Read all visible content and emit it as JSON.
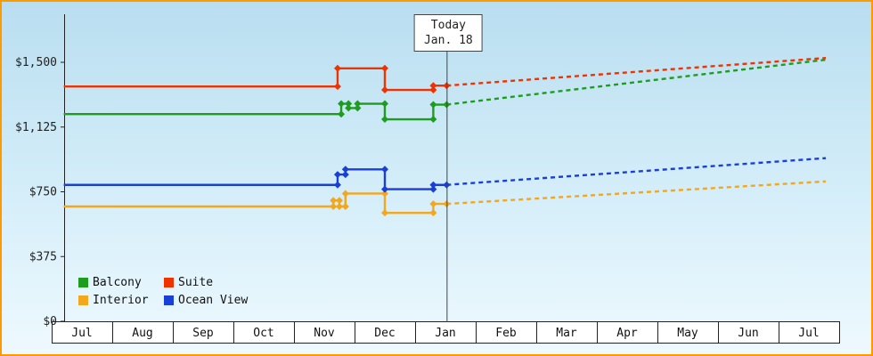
{
  "frame": {
    "border_color": "#ff9900",
    "bg_top": "#b9def0",
    "bg_bottom": "#eef9fe",
    "axis_color": "#222222"
  },
  "today_marker": {
    "line1": "Today",
    "line2": "Jan. 18",
    "month_position": 6.52
  },
  "chart_data": {
    "type": "line",
    "x_axis": {
      "categories": [
        "Jul",
        "Aug",
        "Sep",
        "Oct",
        "Nov",
        "Dec",
        "Jan",
        "Feb",
        "Mar",
        "Apr",
        "May",
        "Jun",
        "Jul"
      ]
    },
    "y_axis": {
      "ticks": [
        {
          "label": "$1,500",
          "value": 1500
        },
        {
          "label": "$1,125",
          "value": 1125
        },
        {
          "label": "$750",
          "value": 750
        },
        {
          "label": "$375",
          "value": 375
        },
        {
          "label": "$0",
          "value": 0
        }
      ],
      "range": [
        0,
        1500
      ],
      "unit": "$"
    },
    "legend_position": "bottom-left",
    "grid": false,
    "series": [
      {
        "name": "Balcony",
        "color": "#1e9c1e",
        "points": [
          [
            0.2,
            1200
          ],
          [
            4.78,
            1200
          ],
          [
            4.78,
            1260
          ],
          [
            4.9,
            1260
          ],
          [
            4.9,
            1235
          ],
          [
            5.05,
            1235
          ],
          [
            5.05,
            1260
          ],
          [
            5.5,
            1260
          ],
          [
            5.5,
            1170
          ],
          [
            6.3,
            1170
          ],
          [
            6.3,
            1255
          ],
          [
            6.52,
            1255
          ]
        ],
        "forecast": [
          [
            6.52,
            1255
          ],
          [
            12.78,
            1515
          ]
        ]
      },
      {
        "name": "Suite",
        "color": "#ee3300",
        "points": [
          [
            0.2,
            1360
          ],
          [
            4.72,
            1360
          ],
          [
            4.72,
            1465
          ],
          [
            5.5,
            1465
          ],
          [
            5.5,
            1340
          ],
          [
            6.3,
            1340
          ],
          [
            6.3,
            1365
          ],
          [
            6.52,
            1365
          ]
        ],
        "forecast": [
          [
            6.52,
            1365
          ],
          [
            12.78,
            1525
          ]
        ]
      },
      {
        "name": "Interior",
        "color": "#f2a71f",
        "points": [
          [
            0.2,
            665
          ],
          [
            4.65,
            665
          ],
          [
            4.65,
            700
          ],
          [
            4.75,
            700
          ],
          [
            4.75,
            665
          ],
          [
            4.85,
            665
          ],
          [
            4.85,
            740
          ],
          [
            5.5,
            740
          ],
          [
            5.5,
            628
          ],
          [
            6.3,
            628
          ],
          [
            6.3,
            680
          ],
          [
            6.52,
            680
          ]
        ],
        "forecast": [
          [
            6.52,
            680
          ],
          [
            12.78,
            810
          ]
        ]
      },
      {
        "name": "Ocean View",
        "color": "#1a3fd6",
        "points": [
          [
            0.2,
            790
          ],
          [
            4.72,
            790
          ],
          [
            4.72,
            850
          ],
          [
            4.85,
            850
          ],
          [
            4.85,
            880
          ],
          [
            5.5,
            880
          ],
          [
            5.5,
            765
          ],
          [
            6.3,
            765
          ],
          [
            6.3,
            790
          ],
          [
            6.52,
            790
          ]
        ],
        "forecast": [
          [
            6.52,
            790
          ],
          [
            12.78,
            945
          ]
        ]
      }
    ]
  }
}
